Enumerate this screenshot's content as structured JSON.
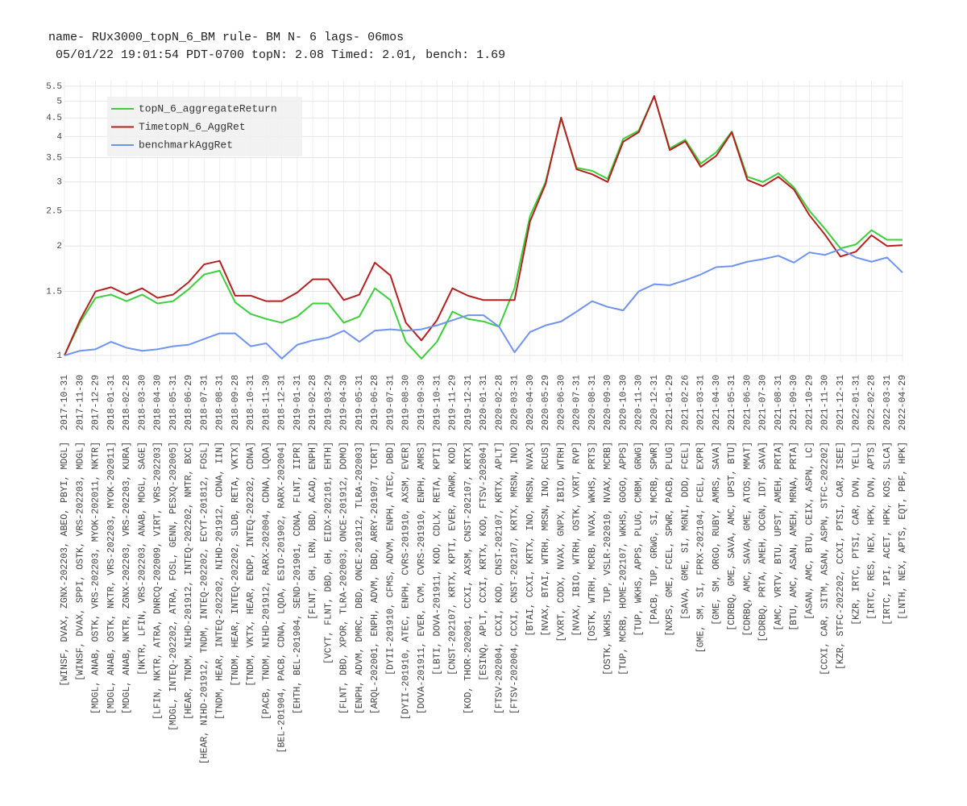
{
  "chart_data": {
    "type": "line",
    "title": "name- RUx3000_topN_6_BM rule- BM N- 6 lags- 06mos",
    "subtitle": " 05/01/22 19:01:54 PDT-0700 topN: 2.08 Timed: 2.01, bench: 1.69",
    "yscale": "log",
    "grid": true,
    "legend": "top-left",
    "ylim": [
      0.96,
      5.7
    ],
    "yticks": [
      1,
      1.5,
      2,
      2.5,
      3,
      3.5,
      4,
      4.5,
      5,
      5.5
    ],
    "categories": [
      "2017-10-31",
      "2017-11-30",
      "2017-12-29",
      "2018-01-31",
      "2018-02-28",
      "2018-03-30",
      "2018-04-30",
      "2018-05-31",
      "2018-06-29",
      "2018-07-31",
      "2018-08-31",
      "2018-09-28",
      "2018-10-31",
      "2018-11-30",
      "2018-12-31",
      "2019-01-31",
      "2019-02-28",
      "2019-03-29",
      "2019-04-30",
      "2019-05-31",
      "2019-06-28",
      "2019-07-31",
      "2019-08-30",
      "2019-09-30",
      "2019-10-31",
      "2019-11-29",
      "2019-12-31",
      "2020-01-31",
      "2020-02-28",
      "2020-03-31",
      "2020-04-30",
      "2020-05-29",
      "2020-06-30",
      "2020-07-31",
      "2020-08-31",
      "2020-09-30",
      "2020-10-30",
      "2020-11-30",
      "2020-12-31",
      "2021-01-29",
      "2021-02-26",
      "2021-03-31",
      "2021-04-30",
      "2021-05-31",
      "2021-06-30",
      "2021-07-30",
      "2021-08-31",
      "2021-09-30",
      "2021-10-29",
      "2021-11-30",
      "2021-12-31",
      "2022-01-31",
      "2022-02-28",
      "2022-03-31",
      "2022-04-29"
    ],
    "holdings": [
      "[WINSF, DVAX, ZGNX-202203, ABEO, PBYI, MDGL]",
      "[WINSF, DVAX, SPPI, OSTK, VRS-202203, MDGL]",
      "[MDGL, ANAB, OSTK, VRS-202203, MYOK-202011, NKTR]",
      "[MDGL, ANAB, OSTK, NKTR, VRS-202203, MYOK-202011]",
      "[MDGL, ANAB, NKTR, ZGNX-202203, VRS-202203, KURA]",
      "[NKTR, LFIN, VRS-202203, ANAB, MDGL, SAGE]",
      "[LFIN, NKTR, ATRA, DNRCQ-202009, VIRT, VRS-202203]",
      "[MDGL, INTEQ-202202, ATRA, FOSL, GENN, PESXQ-202005]",
      "[HEAR, TNDM, NIHD-201912, INTEQ-202202, NMTR, BXC]",
      "[HEAR, NIHD-201912, TNDM, INTEQ-202202, ECYT-201812, FOSL]",
      "[TNDM, HEAR, INTEQ-202202, NIHD-201912, CDNA, IIN]",
      "[TNDM, HEAR, INTEQ-202202, SLDB, RETA, VKTX]",
      "[TNDM, VKTX, HEAR, ENDP, INTEQ-202202, CDNA]",
      "[PACB, TNDM, NIHD-201912, RARX-202004, CDNA, LQDA]",
      "[BEL-201904, PACB, CDNA, LQDA, ESIO-201902, RARX-202004]",
      "[EHTH, BEL-201904, SEND-201901, CDNA, FLNT, IIPR]",
      "[FLNT, GH, LRN, DBD, ACAD, ENPH]",
      "[VCYT, FLNT, DBD, GH, EIDX-202101, EHTH]",
      "[FLNT, DBD, XPOR, TLRA-202003, ONCE-201912, DOMO]",
      "[ENPH, ADVM, DMRC, DBD, ONCE-201912, TLRA-202003]",
      "[ARQL-202001, ENPH, ADVM, DBD, ARRY-201907, TCRT]",
      "[DYII-201910, CFMS, ADVM, ENPH, ATEC, DBD]",
      "[DYII-201910, ATEC, ENPH, CVRS-201910, AXSM, EVER]",
      "[DOVA-201911, EVER, CVM, CVRS-201910, ENPH, AMRS]",
      "[LBTI, DOVA-201911, KOD, CDLX, RETA, KPTI]",
      "[CNST-202107, KRTX, KPTI, EVER, ARWR, KOD]",
      "[KOD, THOR-202001, CCXI, AXSM, CNST-202107, KRTX]",
      "[ESINQ, APLT, CCXI, KRTX, KOD, FTSV-202004]",
      "[FTSV-202004, CCXI, KOD, CNST-202107, KRTX, APLT]",
      "[FTSV-202004, CCXI, CNST-202107, KRTX, MRSN, INO]",
      "[BTAI, CCXI, KRTX, INO, MRSN, NVAX]",
      "[NVAX, BTAI, WTRH, MRSN, INO, RCUS]",
      "[VXRT, CODX, NVAX, GNPX, IBIO, WTRH]",
      "[NVAX, IBIO, WTRH, OSTK, VXRT, RVP]",
      "[OSTK, WTRH, MCRB, NVAX, WKHS, PRTS]",
      "[OSTK, WKHS, TUP, VSLR-202010, NVAX, MCRB]",
      "[TUP, MCRB, HOME-202107, WKHS, GOGO, APPS]",
      "[TUP, WKHS, APPS, PLUG, CMBM, GRWG]",
      "[PACB, TUP, GRWG, SI, MCRB, SPWR]",
      "[NXPS, GME, FCEL, SPWR, PACB, PLUG]",
      "[SAVA, GME, SI, MGNI, DDD, FCEL]",
      "[GME, SM, SI, FPRX-202104, FCEL, EXPR]",
      "[GME, SM, ORGO, RUBY, AMRS, SAVA]",
      "[CDRBQ, GME, SAVA, AMC, UPST, BTU]",
      "[CDRBQ, AMC, SAVA, GME, ATOS, MMAT]",
      "[CDRBQ, PRTA, AMEH, OCGN, IDT, SAVA]",
      "[AMC, VRTV, BTU, UPST, AMEH, PRTA]",
      "[BTU, AMC, ASAN, AMEH, MRNA, PRTA]",
      "[ASAN, AMC, BTU, CEIX, ASPN, LC]",
      "[CCXI, CAR, SITM, ASAN, ASPN, STFC-202202]",
      "[KZR, STFC-202202, CCXI, PTSI, CAR, ISEE]",
      "[KZR, IRTC, PTSI, CAR, DVN, YELL]",
      "[IRTC, RES, NEX, HPK, DVN, APTS]",
      "[IRTC, IPI, ACET, HPK, KOS, SLCA]",
      "[LNTH, NEX, APTS, EQT, PBF, HPK]"
    ],
    "series": [
      {
        "name": "topN_6_aggregateReturn",
        "color": "#3ccf3c",
        "values": [
          1.0,
          1.23,
          1.44,
          1.47,
          1.41,
          1.47,
          1.39,
          1.41,
          1.52,
          1.67,
          1.71,
          1.4,
          1.3,
          1.26,
          1.23,
          1.28,
          1.39,
          1.39,
          1.23,
          1.28,
          1.53,
          1.42,
          1.09,
          0.98,
          1.09,
          1.32,
          1.26,
          1.24,
          1.2,
          1.53,
          2.42,
          3.0,
          4.48,
          3.28,
          3.22,
          3.06,
          3.94,
          4.15,
          5.17,
          3.71,
          3.92,
          3.37,
          3.62,
          4.13,
          3.1,
          3.0,
          3.17,
          2.9,
          2.5,
          2.23,
          1.97,
          2.02,
          2.21,
          2.08,
          2.08
        ]
      },
      {
        "name": "TimetopN_6_AggRet",
        "color": "#b5201f",
        "values": [
          1.0,
          1.25,
          1.5,
          1.54,
          1.47,
          1.53,
          1.44,
          1.47,
          1.59,
          1.78,
          1.82,
          1.46,
          1.46,
          1.41,
          1.41,
          1.49,
          1.62,
          1.62,
          1.42,
          1.47,
          1.8,
          1.66,
          1.23,
          1.1,
          1.25,
          1.53,
          1.46,
          1.42,
          1.42,
          1.42,
          2.34,
          2.96,
          4.51,
          3.25,
          3.15,
          3.0,
          3.87,
          4.11,
          5.17,
          3.67,
          3.88,
          3.3,
          3.54,
          4.11,
          3.04,
          2.92,
          3.1,
          2.86,
          2.43,
          2.15,
          1.87,
          1.93,
          2.14,
          2.0,
          2.01
        ]
      },
      {
        "name": "benchmarkAggRet",
        "color": "#6f93f0",
        "values": [
          1.0,
          1.03,
          1.04,
          1.09,
          1.05,
          1.03,
          1.04,
          1.06,
          1.07,
          1.11,
          1.15,
          1.15,
          1.06,
          1.08,
          0.98,
          1.07,
          1.1,
          1.12,
          1.17,
          1.09,
          1.17,
          1.18,
          1.17,
          1.18,
          1.21,
          1.25,
          1.29,
          1.29,
          1.2,
          1.02,
          1.16,
          1.21,
          1.24,
          1.32,
          1.41,
          1.36,
          1.33,
          1.5,
          1.57,
          1.56,
          1.61,
          1.67,
          1.75,
          1.76,
          1.81,
          1.84,
          1.88,
          1.8,
          1.92,
          1.89,
          1.96,
          1.86,
          1.81,
          1.86,
          1.69
        ]
      }
    ]
  }
}
